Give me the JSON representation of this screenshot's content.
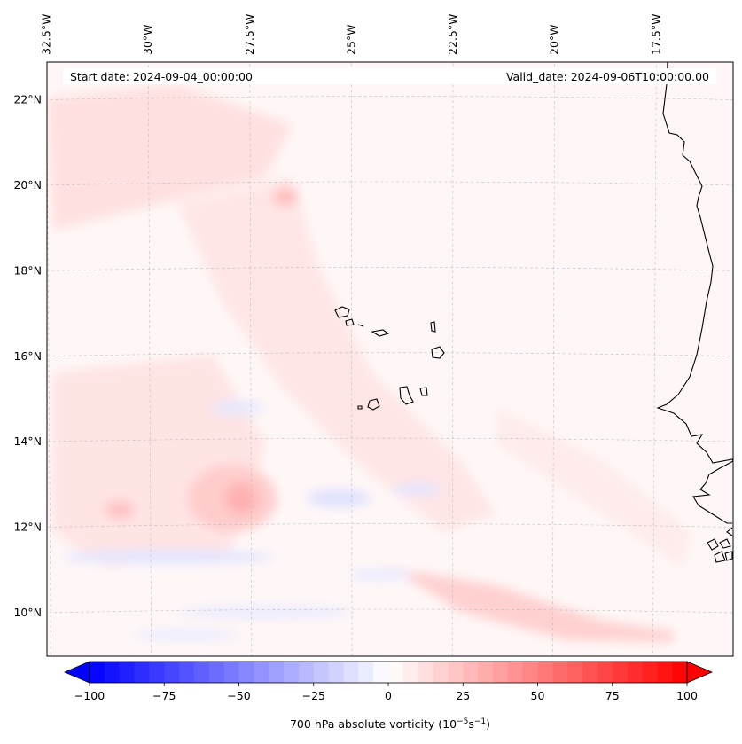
{
  "map": {
    "start_date_label": "Start date: 2024-09-04_00:00:00",
    "valid_date_label": "Valid_date: 2024-09-06T10:00:00.00",
    "lon_labels": [
      "32.5°W",
      "30°W",
      "27.5°W",
      "25°W",
      "22.5°W",
      "20°W",
      "17.5°W"
    ],
    "lat_labels": [
      "22°N",
      "20°N",
      "18°N",
      "16°N",
      "14°N",
      "12°N",
      "10°N"
    ],
    "lon_values": [
      -32.5,
      -30,
      -27.5,
      -25,
      -22.5,
      -20,
      -17.5
    ],
    "lat_values": [
      22,
      20,
      18,
      16,
      14,
      12,
      10
    ],
    "extent": {
      "lon_min": -32.6,
      "lon_max": -15.5,
      "lat_min": 8.9,
      "lat_max": 22.8
    },
    "features": [
      "Cape Verde islands",
      "West African coastline (Mauritania, Senegal, Gambia, Guinea-Bissau)"
    ]
  },
  "colorbar": {
    "label_prefix": "700 hPa absolute vorticity (10",
    "label_exp1": "−5",
    "label_mid": "s",
    "label_exp2": "−1",
    "label_suffix": ")",
    "min": -100,
    "max": 100,
    "ticks": [
      -100,
      -75,
      -50,
      -25,
      0,
      25,
      50,
      75,
      100
    ],
    "tick_labels": [
      "−100",
      "−75",
      "−50",
      "−25",
      "0",
      "25",
      "50",
      "75",
      "100"
    ],
    "colormap": "bwr",
    "extend": "both"
  },
  "colors": {
    "negative": "#0000ff",
    "positive": "#ff0000",
    "neutral": "#ffffff"
  }
}
